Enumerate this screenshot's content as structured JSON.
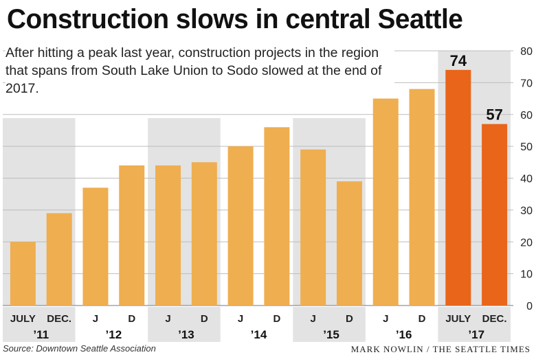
{
  "header": {
    "title": "Construction slows in central Seattle",
    "subtitle": "After hitting a peak last year, construction projects in the region that spans from South Lake Union to Sodo slowed at the end of 2017."
  },
  "footer": {
    "source": "Source: Downtown Seattle Association",
    "credit": "MARK NOWLIN / THE SEATTLE TIMES"
  },
  "colors": {
    "bar": "#EFAE4F",
    "highlight": "#E8651A",
    "band": "#E3E3E3",
    "grid": "#BDBDBD",
    "text": "#222222"
  },
  "chart_data": {
    "type": "bar",
    "categories": [
      "JULY",
      "DEC.",
      "J",
      "D",
      "J",
      "D",
      "J",
      "D",
      "J",
      "D",
      "J",
      "D",
      "JULY",
      "DEC."
    ],
    "years": [
      "’11",
      "’12",
      "’13",
      "’14",
      "’15",
      "’16",
      "’17"
    ],
    "values": [
      20,
      29,
      37,
      44,
      44,
      45,
      50,
      56,
      49,
      39,
      65,
      68,
      74,
      57
    ],
    "highlighted": [
      false,
      false,
      false,
      false,
      false,
      false,
      false,
      false,
      false,
      false,
      false,
      false,
      true,
      true
    ],
    "data_labels": [
      "",
      "",
      "",
      "",
      "",
      "",
      "",
      "",
      "",
      "",
      "",
      "",
      "74",
      "57"
    ],
    "shaded_years": [
      "’11",
      "’13",
      "’15",
      "’17"
    ],
    "ylim": [
      0,
      80
    ],
    "yticks": [
      0,
      10,
      20,
      30,
      40,
      50,
      60,
      70,
      80
    ],
    "axis_position": "right",
    "grid": true
  }
}
